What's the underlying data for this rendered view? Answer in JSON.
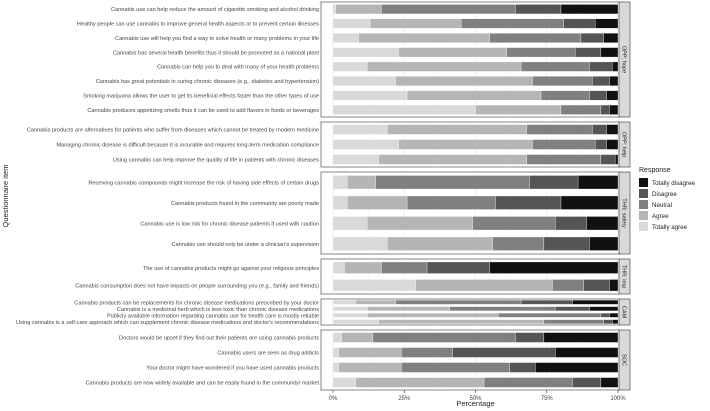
{
  "chart_data": {
    "type": "bar",
    "orientation": "horizontal-stacked-100",
    "xlabel": "Percentage",
    "ylabel": "Questionnaire item",
    "x_ticks": [
      "0%",
      "25%",
      "50%",
      "75%",
      "100%"
    ],
    "xlim": [
      0,
      100
    ],
    "grid": true,
    "legend": {
      "title": "Response",
      "placement": "right",
      "entries": [
        {
          "label": "Totally disagree",
          "color": "#111111"
        },
        {
          "label": "Disagree",
          "color": "#555555"
        },
        {
          "label": "Neutral",
          "color": "#808080"
        },
        {
          "label": "Agree",
          "color": "#b5b5b5"
        },
        {
          "label": "Totally agree",
          "color": "#d9d9d9"
        }
      ]
    },
    "stack_order": [
      "Totally agree",
      "Agree",
      "Neutral",
      "Disagree",
      "Totally disagree"
    ],
    "panels": [
      {
        "strip": "OPP: hope",
        "items": [
          {
            "label": "Cannabis use can help reduce the amount of cigarette smoking and alcohol drinking",
            "values": [
              1,
              16,
              47,
              16,
              20
            ]
          },
          {
            "label": "Healthy people can use cannabis to improve general health aspects or to prevent certain illnesses",
            "values": [
              13,
              32,
              36,
              11,
              8
            ]
          },
          {
            "label": "Cannabis use will help you find a way to solve health or many problems in your life",
            "values": [
              9,
              46,
              32,
              8,
              5
            ]
          },
          {
            "label": "Cannabis has several health benefits thus it should be promoted as a national plant",
            "values": [
              23,
              38,
              24,
              9,
              6
            ]
          },
          {
            "label": "Cannabis can help you to deal with many of your health problems",
            "values": [
              12,
              54,
              24,
              8,
              2
            ]
          },
          {
            "label": "Cannabis has great potentials in curing chronic diseases (e.g., diabetes and hypertension)",
            "values": [
              22,
              48,
              21,
              6,
              3
            ]
          },
          {
            "label": "Smoking marijuana allows the user to get its beneficial effects faster than the other types of use",
            "values": [
              26,
              47,
              17,
              6,
              4
            ]
          },
          {
            "label": "Cannabis produces appetizing smells thus it can be used to add flavors in foods or beverages",
            "values": [
              50,
              30,
              14,
              3,
              3
            ]
          }
        ]
      },
      {
        "strip": "OPP: help",
        "items": [
          {
            "label": "Cannabis products are alternatives for patients who suffer from diseases which cannot be treated by modern medicine",
            "values": [
              19,
              49,
              23,
              5,
              4
            ]
          },
          {
            "label": "Managing chronic disease is difficult because it is incurable and requires long-term medication compliance",
            "values": [
              23,
              47,
              22,
              4,
              4
            ]
          },
          {
            "label": "Using cannabis can help improve the quality of life in patients with chronic diseases",
            "values": [
              16,
              52,
              26,
              5,
              1
            ]
          }
        ]
      },
      {
        "strip": "THR: safety",
        "items": [
          {
            "label": "Receiving cannabis compounds might increase the risk of having side effects of certain drugs",
            "values": [
              5,
              10,
              54,
              17,
              14
            ]
          },
          {
            "label": "Cannabis products found in the community are poorly made",
            "values": [
              5,
              21,
              31,
              23,
              20
            ]
          },
          {
            "label": "Cannabis use is low risk for chronic disease patients if used with caution",
            "values": [
              12,
              37,
              29,
              11,
              11
            ]
          },
          {
            "label": "Cannabis use should only be under a clinician's supervision",
            "values": [
              19,
              37,
              18,
              16,
              10
            ]
          }
        ]
      },
      {
        "strip": "THR: imp",
        "items": [
          {
            "label": "The use of cannabis products might go against your religious principles",
            "values": [
              4,
              13,
              16,
              22,
              45
            ]
          },
          {
            "label": "Cannabis consumption does not have impacts on people surrounding you (e.g., family and friends)",
            "values": [
              29,
              48,
              11,
              9,
              3
            ]
          }
        ]
      },
      {
        "strip": "CAM",
        "items": [
          {
            "label": "Cannabis products can be replacements for chronic disease medications prescribed by your doctor",
            "values": [
              8,
              14,
              44,
              18,
              16
            ]
          },
          {
            "label": "Cannabis is a medicinal herb which is less toxic than chronic disease medications",
            "values": [
              12,
              29,
              37,
              12,
              10
            ]
          },
          {
            "label": "Publicly available information regarding cannabis use for health care is mostly reliable",
            "values": [
              12,
              46,
              36,
              3,
              3
            ]
          },
          {
            "label": "Using cannabis is a self-care approach which can supplement chronic disease medications and doctor's recommendations",
            "values": [
              16,
              58,
              21,
              3,
              2
            ]
          }
        ]
      },
      {
        "strip": "SOC",
        "items": [
          {
            "label": "Doctors would be upset if they find out their patients are using cannabis products",
            "values": [
              3,
              11,
              50,
              10,
              26
            ]
          },
          {
            "label": "Cannabis users are seen as drug addicts",
            "values": [
              2,
              22,
              18,
              36,
              22
            ]
          },
          {
            "label": "Your doctor might have wondered if you have used cannabis products",
            "values": [
              2,
              22,
              38,
              9,
              29
            ]
          },
          {
            "label": "Cannabis products are now widely available and can be easily found in the community/ market",
            "values": [
              8,
              45,
              31,
              10,
              6
            ]
          }
        ]
      }
    ]
  }
}
